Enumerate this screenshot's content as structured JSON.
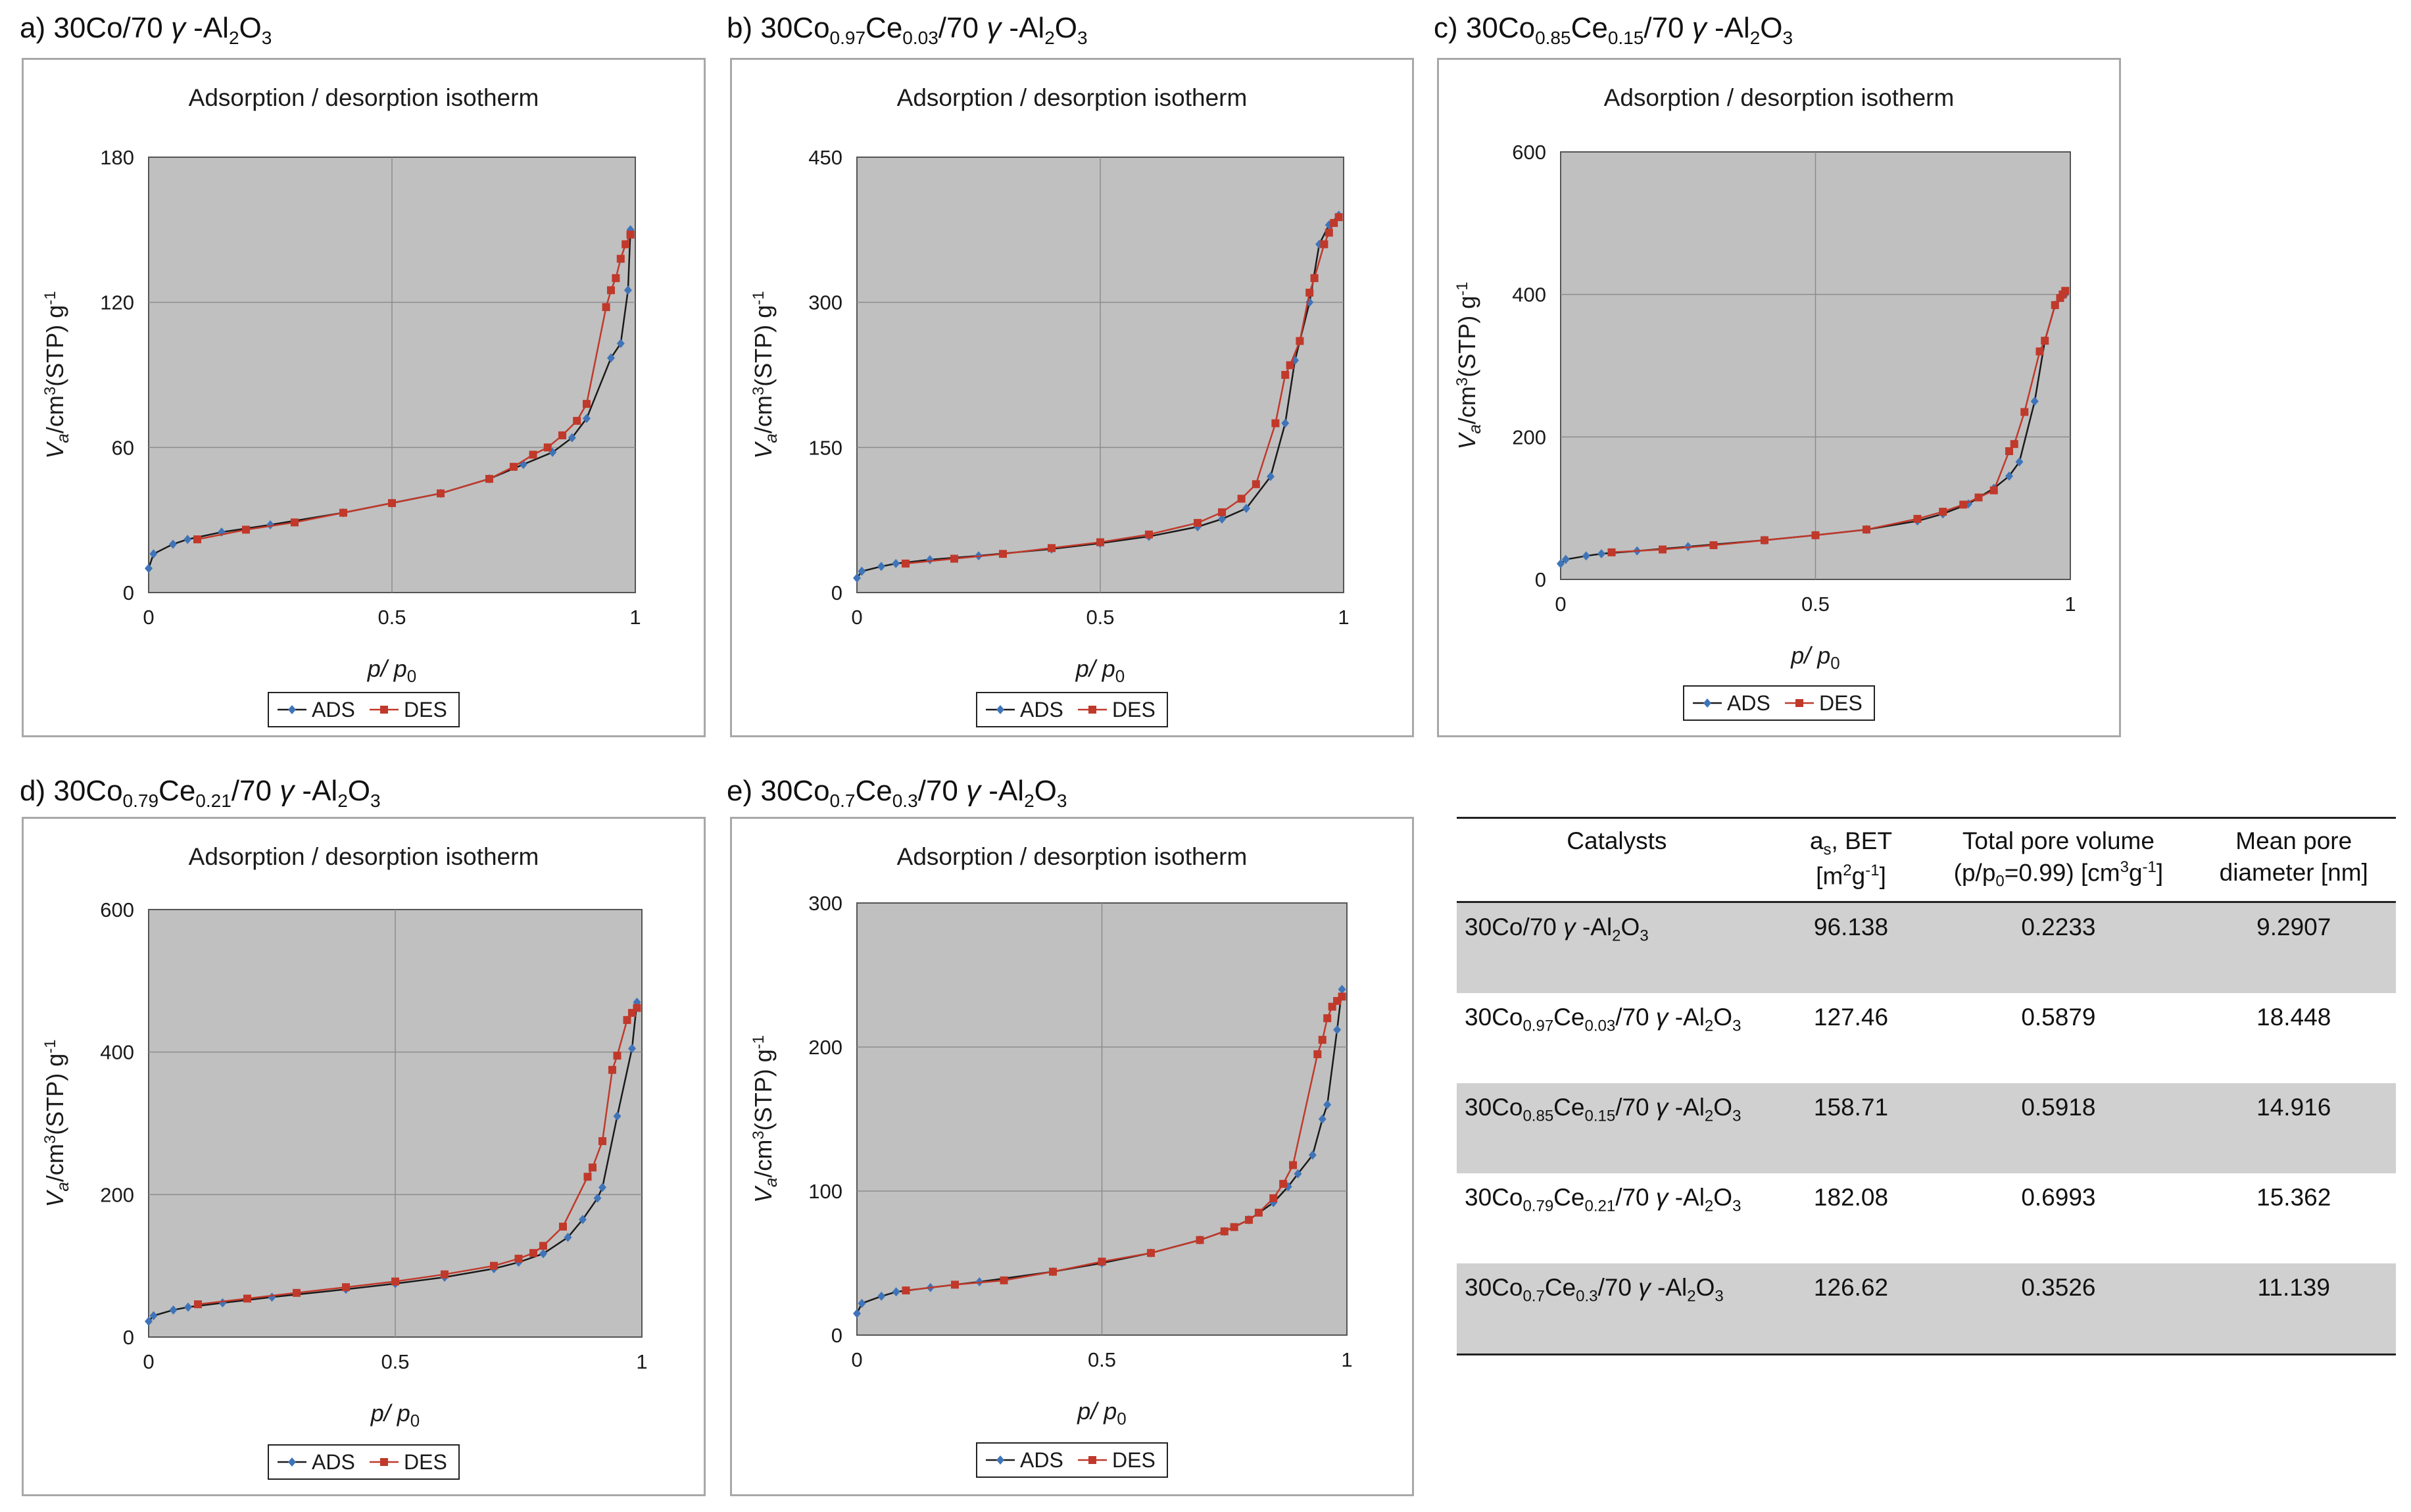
{
  "colors": {
    "ads": "#3f74b8",
    "des": "#c0392b",
    "plot_bg": "#c0c0c0",
    "grid": "#8c8c8c"
  },
  "panels": [
    {
      "id": "a",
      "caption_html": "a) 30Co/70 <i>γ</i> -Al<sub>2</sub>O<sub>3</sub>"
    },
    {
      "id": "b",
      "caption_html": "b) 30Co<sub>0.97</sub>Ce<sub>0.03</sub>/70 <i>γ</i> -Al<sub>2</sub>O<sub>3</sub>"
    },
    {
      "id": "c",
      "caption_html": "c) 30Co<sub>0.85</sub>Ce<sub>0.15</sub>/70 <i>γ</i> -Al<sub>2</sub>O<sub>3</sub>"
    },
    {
      "id": "d",
      "caption_html": "d) 30Co<sub>0.79</sub>Ce<sub>0.21</sub>/70 <i>γ</i> -Al<sub>2</sub>O<sub>3</sub>"
    },
    {
      "id": "e",
      "caption_html": "e) 30Co<sub>0.7</sub>Ce<sub>0.3</sub>/70 <i>γ</i> -Al<sub>2</sub>O<sub>3</sub>"
    }
  ],
  "chart_data": [
    {
      "type": "line",
      "title": "Adsorption / desorption isotherm",
      "xlabel": "p/p0",
      "ylabel": "Va/cm3(STP) g-1",
      "xlim": [
        0,
        1
      ],
      "ylim": [
        0,
        180
      ],
      "xticks": [
        0,
        0.5,
        1
      ],
      "yticks": [
        0,
        60,
        120,
        180
      ],
      "grid": true,
      "legend": "bottom",
      "series": [
        {
          "name": "ADS",
          "color": "#3f74b8",
          "marker": "diamond",
          "x": [
            0.0,
            0.01,
            0.05,
            0.08,
            0.15,
            0.25,
            0.4,
            0.5,
            0.6,
            0.7,
            0.77,
            0.83,
            0.87,
            0.9,
            0.95,
            0.97,
            0.985,
            0.99
          ],
          "y": [
            10,
            16,
            20,
            22,
            25,
            28,
            33,
            37,
            41,
            47,
            53,
            58,
            64,
            72,
            97,
            103,
            125,
            150
          ]
        },
        {
          "name": "DES",
          "color": "#c0392b",
          "marker": "square",
          "x": [
            0.99,
            0.98,
            0.97,
            0.96,
            0.95,
            0.94,
            0.9,
            0.88,
            0.85,
            0.82,
            0.79,
            0.75,
            0.7,
            0.6,
            0.5,
            0.4,
            0.3,
            0.2,
            0.1
          ],
          "y": [
            148,
            144,
            138,
            130,
            125,
            118,
            78,
            71,
            65,
            60,
            57,
            52,
            47,
            41,
            37,
            33,
            29,
            26,
            22
          ]
        }
      ]
    },
    {
      "type": "line",
      "title": "Adsorption / desorption isotherm",
      "xlabel": "p/p0",
      "ylabel": "Va/cm3(STP) g-1",
      "xlim": [
        0,
        1
      ],
      "ylim": [
        0,
        450
      ],
      "xticks": [
        0,
        0.5,
        1
      ],
      "yticks": [
        0,
        150,
        300,
        450
      ],
      "grid": true,
      "legend": "bottom",
      "series": [
        {
          "name": "ADS",
          "color": "#3f74b8",
          "marker": "diamond",
          "x": [
            0.0,
            0.01,
            0.05,
            0.08,
            0.15,
            0.25,
            0.4,
            0.5,
            0.6,
            0.7,
            0.75,
            0.8,
            0.85,
            0.88,
            0.9,
            0.93,
            0.95,
            0.97,
            0.99
          ],
          "y": [
            15,
            22,
            27,
            30,
            34,
            38,
            45,
            51,
            58,
            68,
            76,
            87,
            120,
            175,
            240,
            300,
            360,
            380,
            390
          ]
        },
        {
          "name": "DES",
          "color": "#c0392b",
          "marker": "square",
          "x": [
            0.99,
            0.98,
            0.97,
            0.96,
            0.94,
            0.93,
            0.91,
            0.89,
            0.88,
            0.86,
            0.82,
            0.79,
            0.75,
            0.7,
            0.6,
            0.5,
            0.4,
            0.3,
            0.2,
            0.1
          ],
          "y": [
            388,
            382,
            372,
            360,
            325,
            310,
            260,
            235,
            225,
            175,
            112,
            97,
            83,
            72,
            60,
            52,
            46,
            40,
            35,
            30
          ]
        }
      ]
    },
    {
      "type": "line",
      "title": "Adsorption / desorption isotherm",
      "xlabel": "p/p0",
      "ylabel": "Va/cm3(STP) g-1",
      "xlim": [
        0,
        1
      ],
      "ylim": [
        0,
        600
      ],
      "xticks": [
        0,
        0.5,
        1
      ],
      "yticks": [
        0,
        200,
        400,
        600
      ],
      "grid": true,
      "legend": "bottom",
      "series": [
        {
          "name": "ADS",
          "color": "#3f74b8",
          "marker": "diamond",
          "x": [
            0.0,
            0.01,
            0.05,
            0.08,
            0.15,
            0.25,
            0.4,
            0.5,
            0.6,
            0.7,
            0.75,
            0.8,
            0.85,
            0.88,
            0.9,
            0.93,
            0.95,
            0.97,
            0.99
          ],
          "y": [
            22,
            28,
            33,
            36,
            40,
            46,
            55,
            62,
            70,
            82,
            92,
            106,
            128,
            145,
            165,
            250,
            335,
            385,
            400
          ]
        },
        {
          "name": "DES",
          "color": "#c0392b",
          "marker": "square",
          "x": [
            0.99,
            0.985,
            0.98,
            0.97,
            0.95,
            0.94,
            0.91,
            0.89,
            0.88,
            0.85,
            0.82,
            0.79,
            0.75,
            0.7,
            0.6,
            0.5,
            0.4,
            0.3,
            0.2,
            0.1
          ],
          "y": [
            405,
            400,
            395,
            385,
            335,
            320,
            235,
            190,
            180,
            125,
            115,
            105,
            95,
            85,
            70,
            62,
            55,
            48,
            42,
            38
          ]
        }
      ]
    },
    {
      "type": "line",
      "title": "Adsorption / desorption isotherm",
      "xlabel": "p/p0",
      "ylabel": "Va/cm3(STP) g-1",
      "xlim": [
        0,
        1
      ],
      "ylim": [
        0,
        600
      ],
      "xticks": [
        0,
        0.5,
        1
      ],
      "yticks": [
        0,
        200,
        400,
        600
      ],
      "grid": true,
      "legend": "bottom",
      "series": [
        {
          "name": "ADS",
          "color": "#3f74b8",
          "marker": "diamond",
          "x": [
            0.0,
            0.01,
            0.05,
            0.08,
            0.15,
            0.25,
            0.4,
            0.5,
            0.6,
            0.7,
            0.75,
            0.8,
            0.85,
            0.88,
            0.91,
            0.92,
            0.95,
            0.98,
            0.99
          ],
          "y": [
            22,
            30,
            38,
            42,
            48,
            56,
            67,
            75,
            84,
            96,
            105,
            117,
            140,
            165,
            195,
            210,
            310,
            405,
            470
          ]
        },
        {
          "name": "DES",
          "color": "#c0392b",
          "marker": "square",
          "x": [
            0.99,
            0.98,
            0.97,
            0.95,
            0.94,
            0.92,
            0.9,
            0.89,
            0.84,
            0.8,
            0.78,
            0.75,
            0.7,
            0.6,
            0.5,
            0.4,
            0.3,
            0.2,
            0.1
          ],
          "y": [
            462,
            455,
            445,
            395,
            375,
            275,
            238,
            225,
            155,
            128,
            118,
            110,
            100,
            88,
            78,
            70,
            62,
            54,
            46
          ]
        }
      ]
    },
    {
      "type": "line",
      "title": "Adsorption / desorption isotherm",
      "xlabel": "p/p0",
      "ylabel": "Va/cm3(STP) g-1",
      "xlim": [
        0,
        1
      ],
      "ylim": [
        0,
        300
      ],
      "xticks": [
        0,
        0.5,
        1
      ],
      "yticks": [
        0,
        100,
        200,
        300
      ],
      "grid": true,
      "legend": "bottom",
      "series": [
        {
          "name": "ADS",
          "color": "#3f74b8",
          "marker": "diamond",
          "x": [
            0.0,
            0.01,
            0.05,
            0.08,
            0.15,
            0.25,
            0.4,
            0.5,
            0.6,
            0.7,
            0.75,
            0.8,
            0.85,
            0.88,
            0.9,
            0.93,
            0.95,
            0.96,
            0.98,
            0.99
          ],
          "y": [
            15,
            22,
            27,
            30,
            33,
            37,
            44,
            50,
            57,
            66,
            72,
            80,
            92,
            103,
            112,
            125,
            150,
            160,
            212,
            240
          ]
        },
        {
          "name": "DES",
          "color": "#c0392b",
          "marker": "square",
          "x": [
            0.99,
            0.98,
            0.97,
            0.96,
            0.95,
            0.94,
            0.89,
            0.87,
            0.85,
            0.82,
            0.8,
            0.77,
            0.75,
            0.7,
            0.6,
            0.5,
            0.4,
            0.3,
            0.2,
            0.1
          ],
          "y": [
            235,
            232,
            228,
            220,
            205,
            195,
            118,
            105,
            95,
            85,
            80,
            75,
            72,
            66,
            57,
            51,
            44,
            38,
            35,
            31
          ]
        }
      ]
    }
  ],
  "table": {
    "headers": {
      "catalysts": "Catalysts",
      "as_html": "a<sub>s</sub>, BET<br>[m<sup>2</sup>g<sup>-1</sup>]",
      "pore_volume_html": "Total pore volume<br>(p/p<sub>0</sub>=0.99) [cm<sup>3</sup>g<sup>-1</sup>]",
      "pore_diameter_html": "Mean pore<br>diameter [nm]"
    },
    "rows": [
      {
        "catalyst_html": "30Co/70 <i>γ</i> -Al<sub>2</sub>O<sub>3</sub>",
        "as": "96.138",
        "volume": "0.2233",
        "diameter": "9.2907"
      },
      {
        "catalyst_html": "30Co<sub>0.97</sub>Ce<sub>0.03</sub>/70 <i>γ</i> -Al<sub>2</sub>O<sub>3</sub>",
        "as": "127.46",
        "volume": "0.5879",
        "diameter": "18.448"
      },
      {
        "catalyst_html": "30Co<sub>0.85</sub>Ce<sub>0.15</sub>/70 <i>γ</i> -Al<sub>2</sub>O<sub>3</sub>",
        "as": "158.71",
        "volume": "0.5918",
        "diameter": "14.916"
      },
      {
        "catalyst_html": "30Co<sub>0.79</sub>Ce<sub>0.21</sub>/70 <i>γ</i> -Al<sub>2</sub>O<sub>3</sub>",
        "as": "182.08",
        "volume": "0.6993",
        "diameter": "15.362"
      },
      {
        "catalyst_html": "30Co<sub>0.7</sub>Ce<sub>0.3</sub>/70 <i>γ</i> -Al<sub>2</sub>O<sub>3</sub>",
        "as": "126.62",
        "volume": "0.3526",
        "diameter": "11.139"
      }
    ]
  }
}
